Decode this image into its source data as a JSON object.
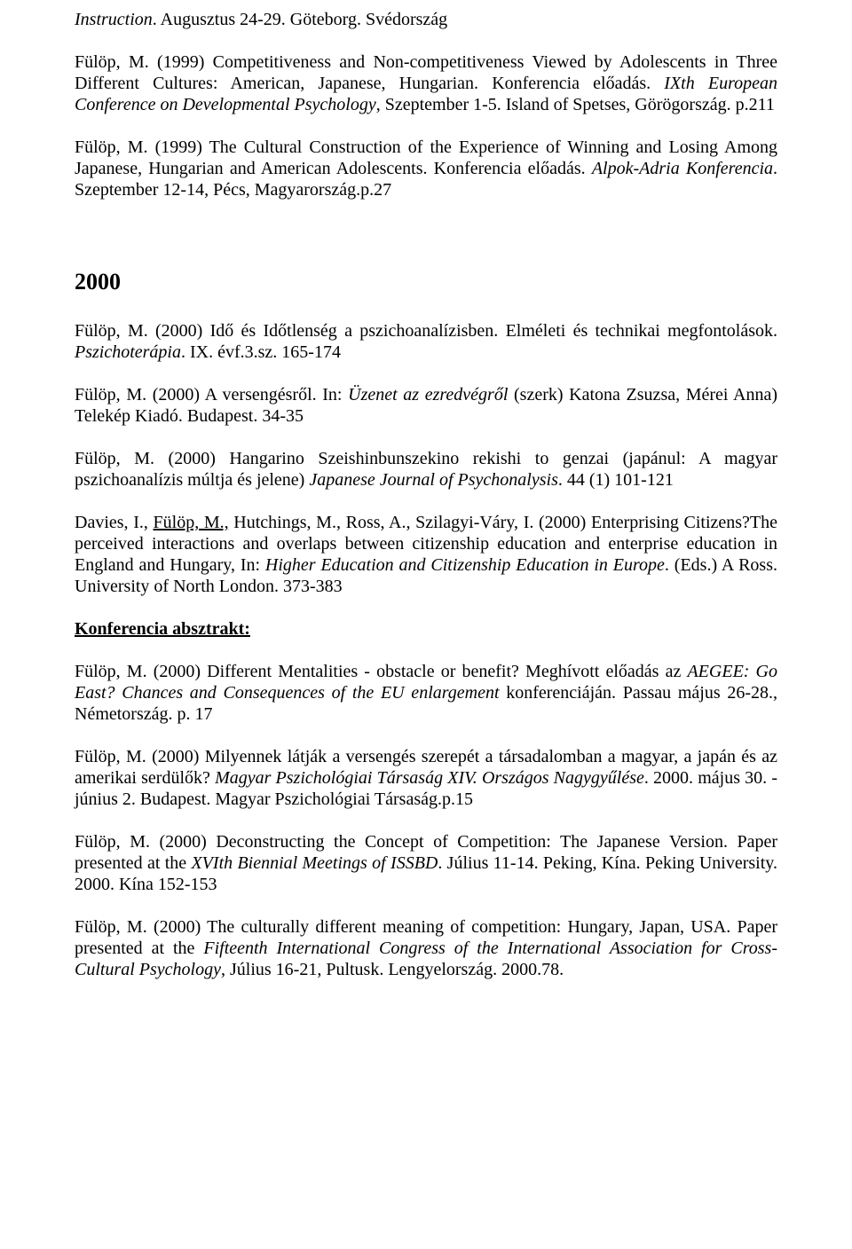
{
  "p1": {
    "a": "Instruction",
    "b": ". Augusztus 24-29. Göteborg. Svédország"
  },
  "p2": {
    "a": "Fülöp, M. (1999) Competitiveness and Non-competitiveness Viewed by Adolescents in Three Different Cultures: American, Japanese, Hungarian. Konferencia előadás. ",
    "b": "IXth European Conference on Developmental Psychology",
    "c": ", Szeptember 1-5. Island of Spetses, Görögország. p.211"
  },
  "p3": {
    "a": "Fülöp, M. (1999) The Cultural Construction of the Experience of Winning and Losing Among Japanese, Hungarian and American Adolescents. Konferencia előadás. ",
    "b": "Alpok-Adria Konferencia",
    "c": ". Szeptember 12-14, Pécs, Magyarország.p.27"
  },
  "year": "2000",
  "p4": {
    "a": "Fülöp, M. (2000) Idő és Időtlenség a pszichoanalízisben. Elméleti és technikai megfontolások. ",
    "b": "Pszichoterápia",
    "c": ". IX. évf.3.sz. 165-174"
  },
  "p5": {
    "a": "Fülöp, M. (2000) A versengésről. In: ",
    "b": "Üzenet az ezredvégről",
    "c": " (szerk) Katona Zsuzsa, Mérei Anna) Telekép Kiadó. Budapest. 34-35"
  },
  "p6": {
    "a": "Fülöp, M. (2000) Hangarino Szeishinbunszekino rekishi to genzai (japánul: A magyar pszichoanalízis múltja és jelene) ",
    "b": "Japanese Journal of Psychonalysis",
    "c": ". 44 (1) 101-121"
  },
  "p7": {
    "a": "Davies, I., ",
    "b": "Fülöp, M.,",
    "c": " Hutchings, M., Ross, A., Szilagyi-Váry, I. (2000) Enterprising Citizens?The perceived interactions and overlaps between citizenship education and enterprise education in England and Hungary, In: ",
    "d": "Higher Education and Citizenship Education in Europe",
    "e": ". (Eds.) A Ross. University of North London. 373-383"
  },
  "sect": "Konferencia absztrakt:",
  "p8": {
    "a": "Fülöp, M. (2000) Different Mentalities - obstacle or benefit? Meghívott előadás az ",
    "b": "AEGEE: Go East? Chances and Consequences of the EU enlargement",
    "c": " konferenciáján. Passau május 26-28., Németország. p. 17"
  },
  "p9": {
    "a": "Fülöp, M. (2000) Milyennek látják a versengés szerepét a társadalomban a magyar, a japán és az amerikai serdülők? ",
    "b": "Magyar Pszichológiai Társaság XIV. Országos Nagygyűlése",
    "c": ". 2000. május 30. - június 2. Budapest. Magyar Pszichológiai Társaság.p.15"
  },
  "p10": {
    "a": "Fülöp, M. (2000) Deconstructing the Concept of Competition: The Japanese Version. Paper presented at the ",
    "b": "XVIth Biennial Meetings of ISSBD",
    "c": ". Július 11-14. Peking, Kína. Peking University. 2000. Kína 152-153"
  },
  "p11": {
    "a": "Fülöp, M. (2000) The culturally different meaning of competition: Hungary, Japan, USA. Paper presented at the ",
    "b": "Fifteenth International Congress of the International Association for Cross-Cultural Psychology",
    "c": ", Július 16-21, Pultusk. Lengyelország. 2000.78."
  }
}
